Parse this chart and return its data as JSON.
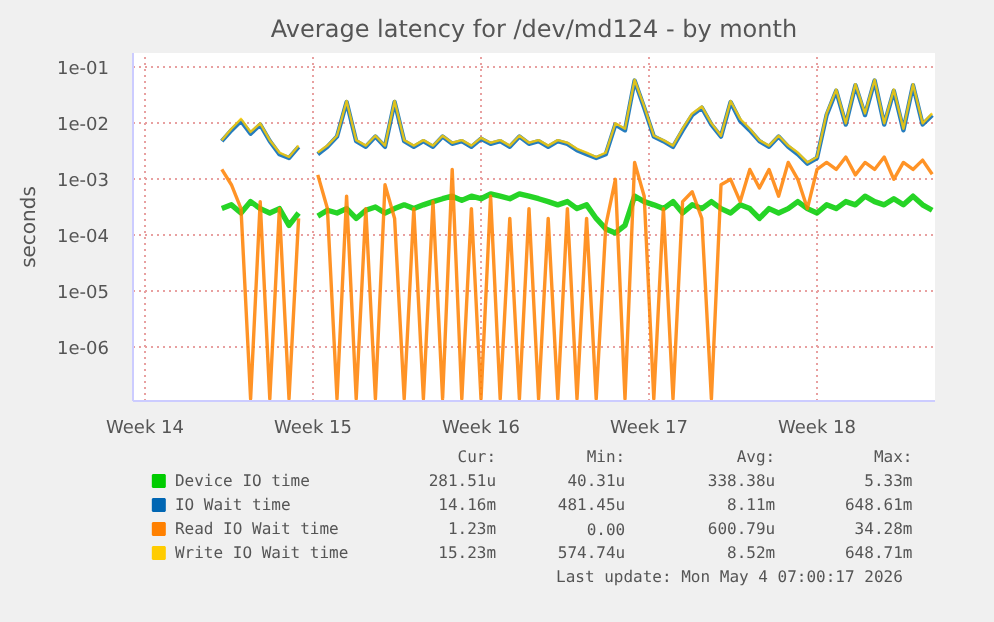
{
  "chart_data": {
    "type": "line",
    "title": "Average latency for /dev/md124 - by month",
    "ylabel": "seconds",
    "x": [
      "2026-04-04T13:48",
      "2026-04-04T23:24",
      "2026-04-05T09:00",
      "2026-04-05T18:36",
      "2026-04-06T04:12",
      "2026-04-06T13:48",
      "2026-04-06T23:24",
      "2026-04-07T09:00",
      "2026-04-07T18:36",
      "2026-04-08T04:12",
      "2026-04-08T13:48",
      "2026-04-08T23:24",
      "2026-04-09T09:00",
      "2026-04-09T18:36",
      "2026-04-10T04:12",
      "2026-04-10T13:48",
      "2026-04-10T23:24",
      "2026-04-11T09:00",
      "2026-04-11T18:36",
      "2026-04-12T04:12",
      "2026-04-12T13:48",
      "2026-04-12T23:24",
      "2026-04-13T09:00",
      "2026-04-13T18:36",
      "2026-04-14T04:12",
      "2026-04-14T13:48",
      "2026-04-14T23:24",
      "2026-04-15T09:00",
      "2026-04-15T18:36",
      "2026-04-16T04:12",
      "2026-04-16T13:48",
      "2026-04-16T23:24",
      "2026-04-17T09:00",
      "2026-04-17T18:36",
      "2026-04-18T04:12",
      "2026-04-18T13:48",
      "2026-04-18T23:24",
      "2026-04-19T09:00",
      "2026-04-19T18:36",
      "2026-04-20T04:12",
      "2026-04-20T13:48",
      "2026-04-20T23:24",
      "2026-04-21T09:00",
      "2026-04-21T18:36",
      "2026-04-22T04:12",
      "2026-04-22T13:48",
      "2026-04-22T23:24",
      "2026-04-23T09:00",
      "2026-04-23T18:36",
      "2026-04-24T04:12",
      "2026-04-24T13:48",
      "2026-04-24T23:24",
      "2026-04-25T09:00",
      "2026-04-25T18:36",
      "2026-04-26T04:12",
      "2026-04-26T13:48",
      "2026-04-26T23:24",
      "2026-04-27T09:00",
      "2026-04-27T18:36",
      "2026-04-28T04:12",
      "2026-04-28T13:48",
      "2026-04-28T23:24",
      "2026-04-29T09:00",
      "2026-04-29T18:36",
      "2026-04-30T04:12",
      "2026-04-30T13:48",
      "2026-04-30T23:24",
      "2026-05-01T09:00",
      "2026-05-01T18:36",
      "2026-05-02T04:12",
      "2026-05-02T13:48",
      "2026-05-02T23:24",
      "2026-05-03T09:00",
      "2026-05-03T18:36",
      "2026-05-04T04:12"
    ],
    "series": [
      {
        "name": "Device IO time",
        "color": "#00cc00",
        "values": [
          0.0003,
          0.00035,
          0.00025,
          0.0004,
          0.0003,
          0.00025,
          0.0003,
          0.00015,
          0.00025,
          null,
          0.00022,
          0.00028,
          0.00025,
          0.0003,
          0.0002,
          0.00028,
          0.00032,
          0.00025,
          0.0003,
          0.00035,
          0.0003,
          0.00035,
          0.0004,
          0.00045,
          0.0005,
          0.00042,
          0.0005,
          0.00045,
          0.00055,
          0.0005,
          0.00045,
          0.00055,
          0.0005,
          0.00045,
          0.0004,
          0.00035,
          0.0004,
          0.0003,
          0.00035,
          0.0002,
          0.00013,
          0.00011,
          0.00015,
          0.0005,
          0.0004,
          0.00035,
          0.0003,
          0.0004,
          0.00025,
          0.00035,
          0.0003,
          0.0004,
          0.0003,
          0.00025,
          0.00035,
          0.0003,
          0.0002,
          0.0003,
          0.00025,
          0.0003,
          0.0004,
          0.0003,
          0.00025,
          0.00035,
          0.0003,
          0.0004,
          0.00035,
          0.0005,
          0.0004,
          0.00035,
          0.00045,
          0.00035,
          0.0005,
          0.00035,
          0.00028
        ]
      },
      {
        "name": "IO Wait time",
        "color": "#0066b3",
        "values": [
          0.0048,
          0.0075,
          0.011,
          0.0065,
          0.0095,
          0.0048,
          0.0028,
          0.0024,
          0.0038,
          null,
          0.0028,
          0.0038,
          0.0058,
          0.024,
          0.0048,
          0.0038,
          0.0058,
          0.0038,
          0.024,
          0.0048,
          0.0038,
          0.0048,
          0.0038,
          0.0058,
          0.0043,
          0.0048,
          0.0038,
          0.0053,
          0.0043,
          0.0048,
          0.0038,
          0.0058,
          0.0043,
          0.0048,
          0.0038,
          0.0048,
          0.0043,
          0.0033,
          0.0028,
          0.0024,
          0.0028,
          0.0095,
          0.0075,
          0.058,
          0.019,
          0.0058,
          0.0048,
          0.0038,
          0.0075,
          0.014,
          0.019,
          0.0095,
          0.0058,
          0.024,
          0.011,
          0.0075,
          0.0048,
          0.0038,
          0.0058,
          0.0038,
          0.0028,
          0.0019,
          0.0024,
          0.014,
          0.038,
          0.0095,
          0.048,
          0.014,
          0.058,
          0.0095,
          0.038,
          0.0075,
          0.048,
          0.0095,
          0.014
        ]
      },
      {
        "name": "Read IO Wait time",
        "color": "#ff8000",
        "values": [
          0.0015,
          0.0008,
          0.0003,
          1.2e-07,
          0.0004,
          1.2e-07,
          0.0003,
          1.2e-07,
          0.0002,
          null,
          0.0012,
          0.0003,
          1.2e-07,
          0.0005,
          1.2e-07,
          0.0003,
          1.2e-07,
          0.0008,
          0.0002,
          1.2e-07,
          0.0003,
          1.2e-07,
          0.0004,
          1.2e-07,
          0.0015,
          1.2e-07,
          0.0003,
          1.2e-07,
          0.0005,
          1.2e-07,
          0.0002,
          1.2e-07,
          0.0003,
          1.2e-07,
          0.0002,
          1.2e-07,
          0.0003,
          1.2e-07,
          0.0002,
          1.2e-07,
          0.00015,
          0.001,
          1.2e-07,
          0.002,
          0.0005,
          1.2e-07,
          0.0003,
          1.2e-07,
          0.0004,
          0.0006,
          0.0002,
          1.2e-07,
          0.0008,
          0.001,
          0.0004,
          0.0015,
          0.0007,
          0.0015,
          0.0005,
          0.002,
          0.001,
          0.0003,
          0.0015,
          0.002,
          0.0015,
          0.0025,
          0.0012,
          0.002,
          0.0015,
          0.0025,
          0.001,
          0.002,
          0.0015,
          0.0022,
          0.00123
        ]
      },
      {
        "name": "Write IO Wait time",
        "color": "#ffcc00",
        "values": [
          0.005,
          0.008,
          0.012,
          0.007,
          0.01,
          0.005,
          0.003,
          0.0025,
          0.004,
          null,
          0.003,
          0.004,
          0.006,
          0.025,
          0.005,
          0.004,
          0.006,
          0.004,
          0.025,
          0.005,
          0.004,
          0.005,
          0.004,
          0.006,
          0.0045,
          0.005,
          0.004,
          0.0055,
          0.0045,
          0.005,
          0.004,
          0.006,
          0.0045,
          0.005,
          0.004,
          0.005,
          0.0045,
          0.0035,
          0.003,
          0.0025,
          0.003,
          0.01,
          0.008,
          0.06,
          0.02,
          0.006,
          0.005,
          0.004,
          0.008,
          0.015,
          0.02,
          0.01,
          0.006,
          0.025,
          0.012,
          0.008,
          0.005,
          0.004,
          0.006,
          0.004,
          0.003,
          0.002,
          0.0025,
          0.015,
          0.04,
          0.01,
          0.05,
          0.015,
          0.06,
          0.01,
          0.04,
          0.008,
          0.05,
          0.01,
          0.015
        ]
      }
    ],
    "xlim": [
      "2026-03-31T21:00",
      "2026-05-04T07:00"
    ],
    "xticks": [
      {
        "value": "2026-04-01T09:00",
        "label": "Week 14"
      },
      {
        "value": "2026-04-08T09:00",
        "label": "Week 15"
      },
      {
        "value": "2026-04-15T09:00",
        "label": "Week 16"
      },
      {
        "value": "2026-04-22T09:00",
        "label": "Week 17"
      },
      {
        "value": "2026-04-29T09:00",
        "label": "Week 18"
      }
    ],
    "ylim": [
      1.1e-07,
      0.18
    ],
    "yticks": [
      {
        "value": 1e-06,
        "label": "1e-06"
      },
      {
        "value": 1e-05,
        "label": "1e-05"
      },
      {
        "value": 0.0001,
        "label": "1e-04"
      },
      {
        "value": 0.001,
        "label": "1e-03"
      },
      {
        "value": 0.01,
        "label": "1e-02"
      },
      {
        "value": 0.1,
        "label": "1e-01"
      }
    ],
    "log": "y",
    "grid": true,
    "legend": "bottom",
    "annotations": [
      "Cur:",
      "Min:",
      "Avg:",
      "Max:",
      "281.51u",
      "40.31u",
      "338.38u",
      "5.33m",
      "14.16m",
      "481.45u",
      "8.11m",
      "648.61m",
      "1.23m",
      "0.00",
      "600.79u",
      "34.28m",
      "15.23m",
      "574.74u",
      "8.52m",
      "648.71m",
      "Last update: Mon May  4 07:00:17 2026"
    ]
  }
}
